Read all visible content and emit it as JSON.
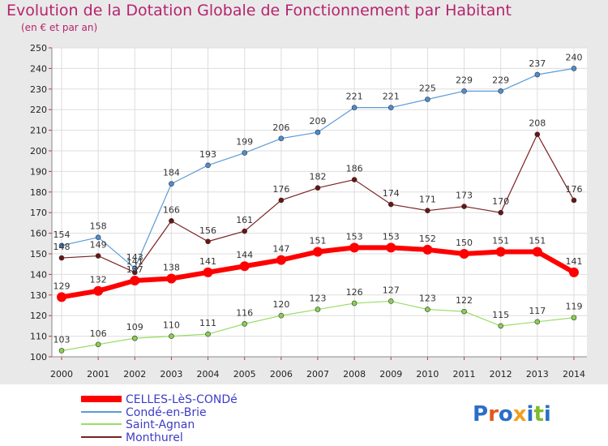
{
  "chart_data": {
    "type": "line",
    "title": "Evolution de la Dotation Globale de Fonctionnement par Habitant",
    "subtitle": "(en € et par an)",
    "x": [
      "2000",
      "2001",
      "2002",
      "2003",
      "2004",
      "2005",
      "2006",
      "2007",
      "2008",
      "2009",
      "2010",
      "2011",
      "2012",
      "2013",
      "2014"
    ],
    "ylim": [
      100,
      250
    ],
    "yticks": [
      100,
      110,
      120,
      130,
      140,
      150,
      160,
      170,
      180,
      190,
      200,
      210,
      220,
      230,
      240,
      250
    ],
    "grid": true,
    "legend_position": "bottom-left",
    "series": [
      {
        "name": "CELLES-LèS-CONDé",
        "color": "#ff0000",
        "values": [
          129,
          132,
          137,
          138,
          141,
          144,
          147,
          151,
          153,
          153,
          152,
          150,
          151,
          151,
          141
        ]
      },
      {
        "name": "Condé-en-Brie",
        "color": "#5b9bd5",
        "values": [
          154,
          158,
          143,
          184,
          193,
          199,
          206,
          209,
          221,
          221,
          225,
          229,
          229,
          237,
          240
        ]
      },
      {
        "name": "Saint-Agnan",
        "color": "#99dd66",
        "values": [
          103,
          106,
          109,
          110,
          111,
          116,
          120,
          123,
          126,
          127,
          123,
          122,
          115,
          117,
          119
        ]
      },
      {
        "name": "Monthurel",
        "color": "#7b2222",
        "values": [
          148,
          149,
          141,
          166,
          156,
          161,
          176,
          182,
          186,
          174,
          171,
          173,
          170,
          208,
          176
        ]
      }
    ],
    "data_labels": [
      [
        null,
        null,
        137,
        null,
        null,
        null,
        null,
        null,
        null,
        null,
        null,
        null,
        null,
        null,
        null
      ],
      [
        null,
        null,
        null,
        null,
        null,
        null,
        null,
        null,
        null,
        null,
        null,
        null,
        null,
        null,
        null
      ],
      [
        null,
        null,
        null,
        null,
        null,
        null,
        null,
        null,
        null,
        null,
        null,
        null,
        null,
        null,
        null
      ],
      [
        null,
        null,
        null,
        null,
        null,
        null,
        null,
        null,
        null,
        null,
        null,
        null,
        null,
        null,
        null
      ]
    ]
  },
  "logo": {
    "text": "Proxiti"
  }
}
